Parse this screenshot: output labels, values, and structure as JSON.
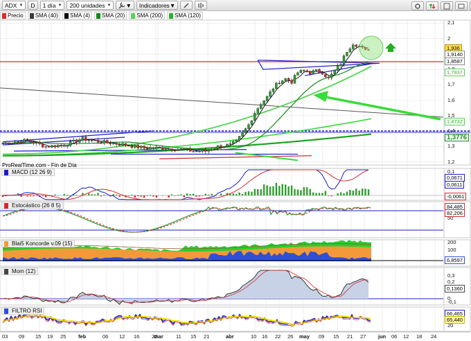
{
  "toolbar": {
    "ticker": "ADX",
    "mode": "D",
    "timeframe": "1 día",
    "units": "200 unidades",
    "indicators": "Indicadores"
  },
  "price_legend": [
    {
      "label": "Precio",
      "color": "#d92b2b"
    },
    {
      "label": "SMA (40)",
      "color": "#3a3a3a"
    },
    {
      "label": "SMA (4)",
      "color": "#000000"
    },
    {
      "label": "SMA (20)",
      "color": "#138a1a"
    },
    {
      "label": "SMA (200)",
      "color": "#53d453"
    },
    {
      "label": "SMA (120)",
      "color": "#2bb12b"
    }
  ],
  "source_text": "ProRealTime.com - Fin de Día",
  "price_axis": {
    "ticks": [
      "2,1",
      "2",
      "1,9",
      "1,8",
      "1,7",
      "1,6",
      "1,5",
      "1,4",
      "1,3",
      "1,2"
    ],
    "tags": [
      {
        "value": "1,936",
        "bg": "#ffe24a",
        "border": "#b08a00"
      },
      {
        "value": "1,9140",
        "bg": "#ffffff",
        "border": "#888888"
      },
      {
        "value": "1,8587",
        "bg": "#ffffff",
        "border": "#888888"
      },
      {
        "value": "1,7937",
        "bg": "#ffffff",
        "border": "#53d453"
      },
      {
        "value": "1,4732",
        "bg": "#ffffff",
        "border": "#53d453"
      },
      {
        "value": "1,3776",
        "bg": "#ffffff",
        "border": "#138a1a"
      }
    ]
  },
  "macd": {
    "title": "MACD (12 26 9)",
    "ticks": [
      "0,1",
      "0",
      "-0"
    ],
    "tags": [
      "0,0671",
      "0,0611",
      "-0,0061"
    ]
  },
  "stochastic": {
    "title": "Estocástico (26 8 5)",
    "ticks": [
      "100",
      "50"
    ],
    "tags": [
      "84,485",
      "82,206"
    ]
  },
  "koncorde": {
    "title": "Blai5 Koncorde v.09 (15)",
    "ticks": [
      "200",
      "100",
      "0"
    ],
    "tags": [
      "6,8597"
    ]
  },
  "momentum": {
    "title": "Mom (12)",
    "ticks": [
      "0,3",
      "0,2",
      "0,1",
      "0",
      "-0,1"
    ],
    "tags": [
      "0,1360"
    ]
  },
  "rsi_filter": {
    "title": "FILTRO RSI",
    "ticks": [
      "80",
      "60",
      "40",
      "20"
    ],
    "tags": [
      "66,465",
      "65,440"
    ]
  },
  "x_labels": [
    "03",
    "09",
    "15",
    "19",
    "25",
    "feb",
    "06",
    "12",
    "16",
    "22",
    "mar",
    "11",
    "15",
    "21",
    "abr",
    "10",
    "16",
    "22",
    "26",
    "may",
    "09",
    "15",
    "21",
    "27",
    "jun",
    "06",
    "12",
    "18",
    "24"
  ],
  "colors": {
    "up": "#2e9e2e",
    "down": "#d22b2b",
    "grid": "#e3e3e3",
    "blue_line": "#1c1cc8",
    "red_line": "#d22b2b",
    "light_green": "#53d453",
    "dark_green": "#138a1a",
    "arrow_green": "#3adb3a",
    "highlight_circle": "#8fe27a",
    "koncorde_orange": "#f29a3a",
    "koncorde_green": "#2ecc2e",
    "koncorde_blue": "#2f4fd6",
    "mom_fill": "#c8d2e6"
  },
  "chart_data": [
    {
      "type": "line",
      "title": "ADX",
      "xlabel": "",
      "ylabel": "",
      "x": [
        "03",
        "09",
        "15",
        "19",
        "25",
        "feb",
        "06",
        "12",
        "16",
        "22",
        "mar",
        "11",
        "15",
        "21",
        "abr",
        "10",
        "16",
        "22",
        "26",
        "may",
        "09",
        "15",
        "21",
        "27"
      ],
      "series": [
        {
          "name": "Precio",
          "values": [
            1.32,
            1.33,
            1.29,
            1.31,
            1.33,
            1.31,
            1.29,
            1.28,
            1.29,
            1.27,
            1.28,
            1.29,
            1.31,
            1.36,
            1.56,
            1.69,
            1.76,
            1.79,
            1.78,
            1.72,
            1.84,
            1.93,
            1.96,
            1.936
          ]
        },
        {
          "name": "SMA (20)",
          "values": [
            1.32,
            1.32,
            1.31,
            1.31,
            1.31,
            1.31,
            1.3,
            1.29,
            1.29,
            1.28,
            1.28,
            1.28,
            1.29,
            1.31,
            1.38,
            1.48,
            1.56,
            1.64,
            1.7,
            1.72,
            1.75,
            1.78,
            1.81,
            1.8587
          ]
        },
        {
          "name": "SMA (200)",
          "values": [
            null,
            null,
            null,
            null,
            null,
            null,
            null,
            null,
            null,
            null,
            null,
            null,
            1.28,
            1.29,
            1.31,
            1.36,
            1.42,
            1.49,
            1.55,
            1.6,
            1.66,
            1.71,
            1.76,
            1.7937
          ]
        },
        {
          "name": "SMA (120)",
          "values": [
            null,
            null,
            null,
            null,
            null,
            null,
            null,
            null,
            null,
            null,
            null,
            null,
            1.25,
            1.26,
            1.28,
            1.31,
            1.34,
            1.37,
            1.39,
            1.41,
            1.43,
            1.45,
            1.46,
            1.4732
          ]
        },
        {
          "name": "SMA (40)",
          "values": [
            null,
            null,
            null,
            null,
            null,
            null,
            null,
            null,
            null,
            null,
            null,
            null,
            1.25,
            1.26,
            1.27,
            1.28,
            1.3,
            1.32,
            1.33,
            1.34,
            1.35,
            1.36,
            1.37,
            1.3776
          ]
        }
      ],
      "horizontal_levels": [
        1.85,
        1.4
      ],
      "ylim": [
        1.18,
        2.12
      ],
      "grid": true
    }
  ]
}
